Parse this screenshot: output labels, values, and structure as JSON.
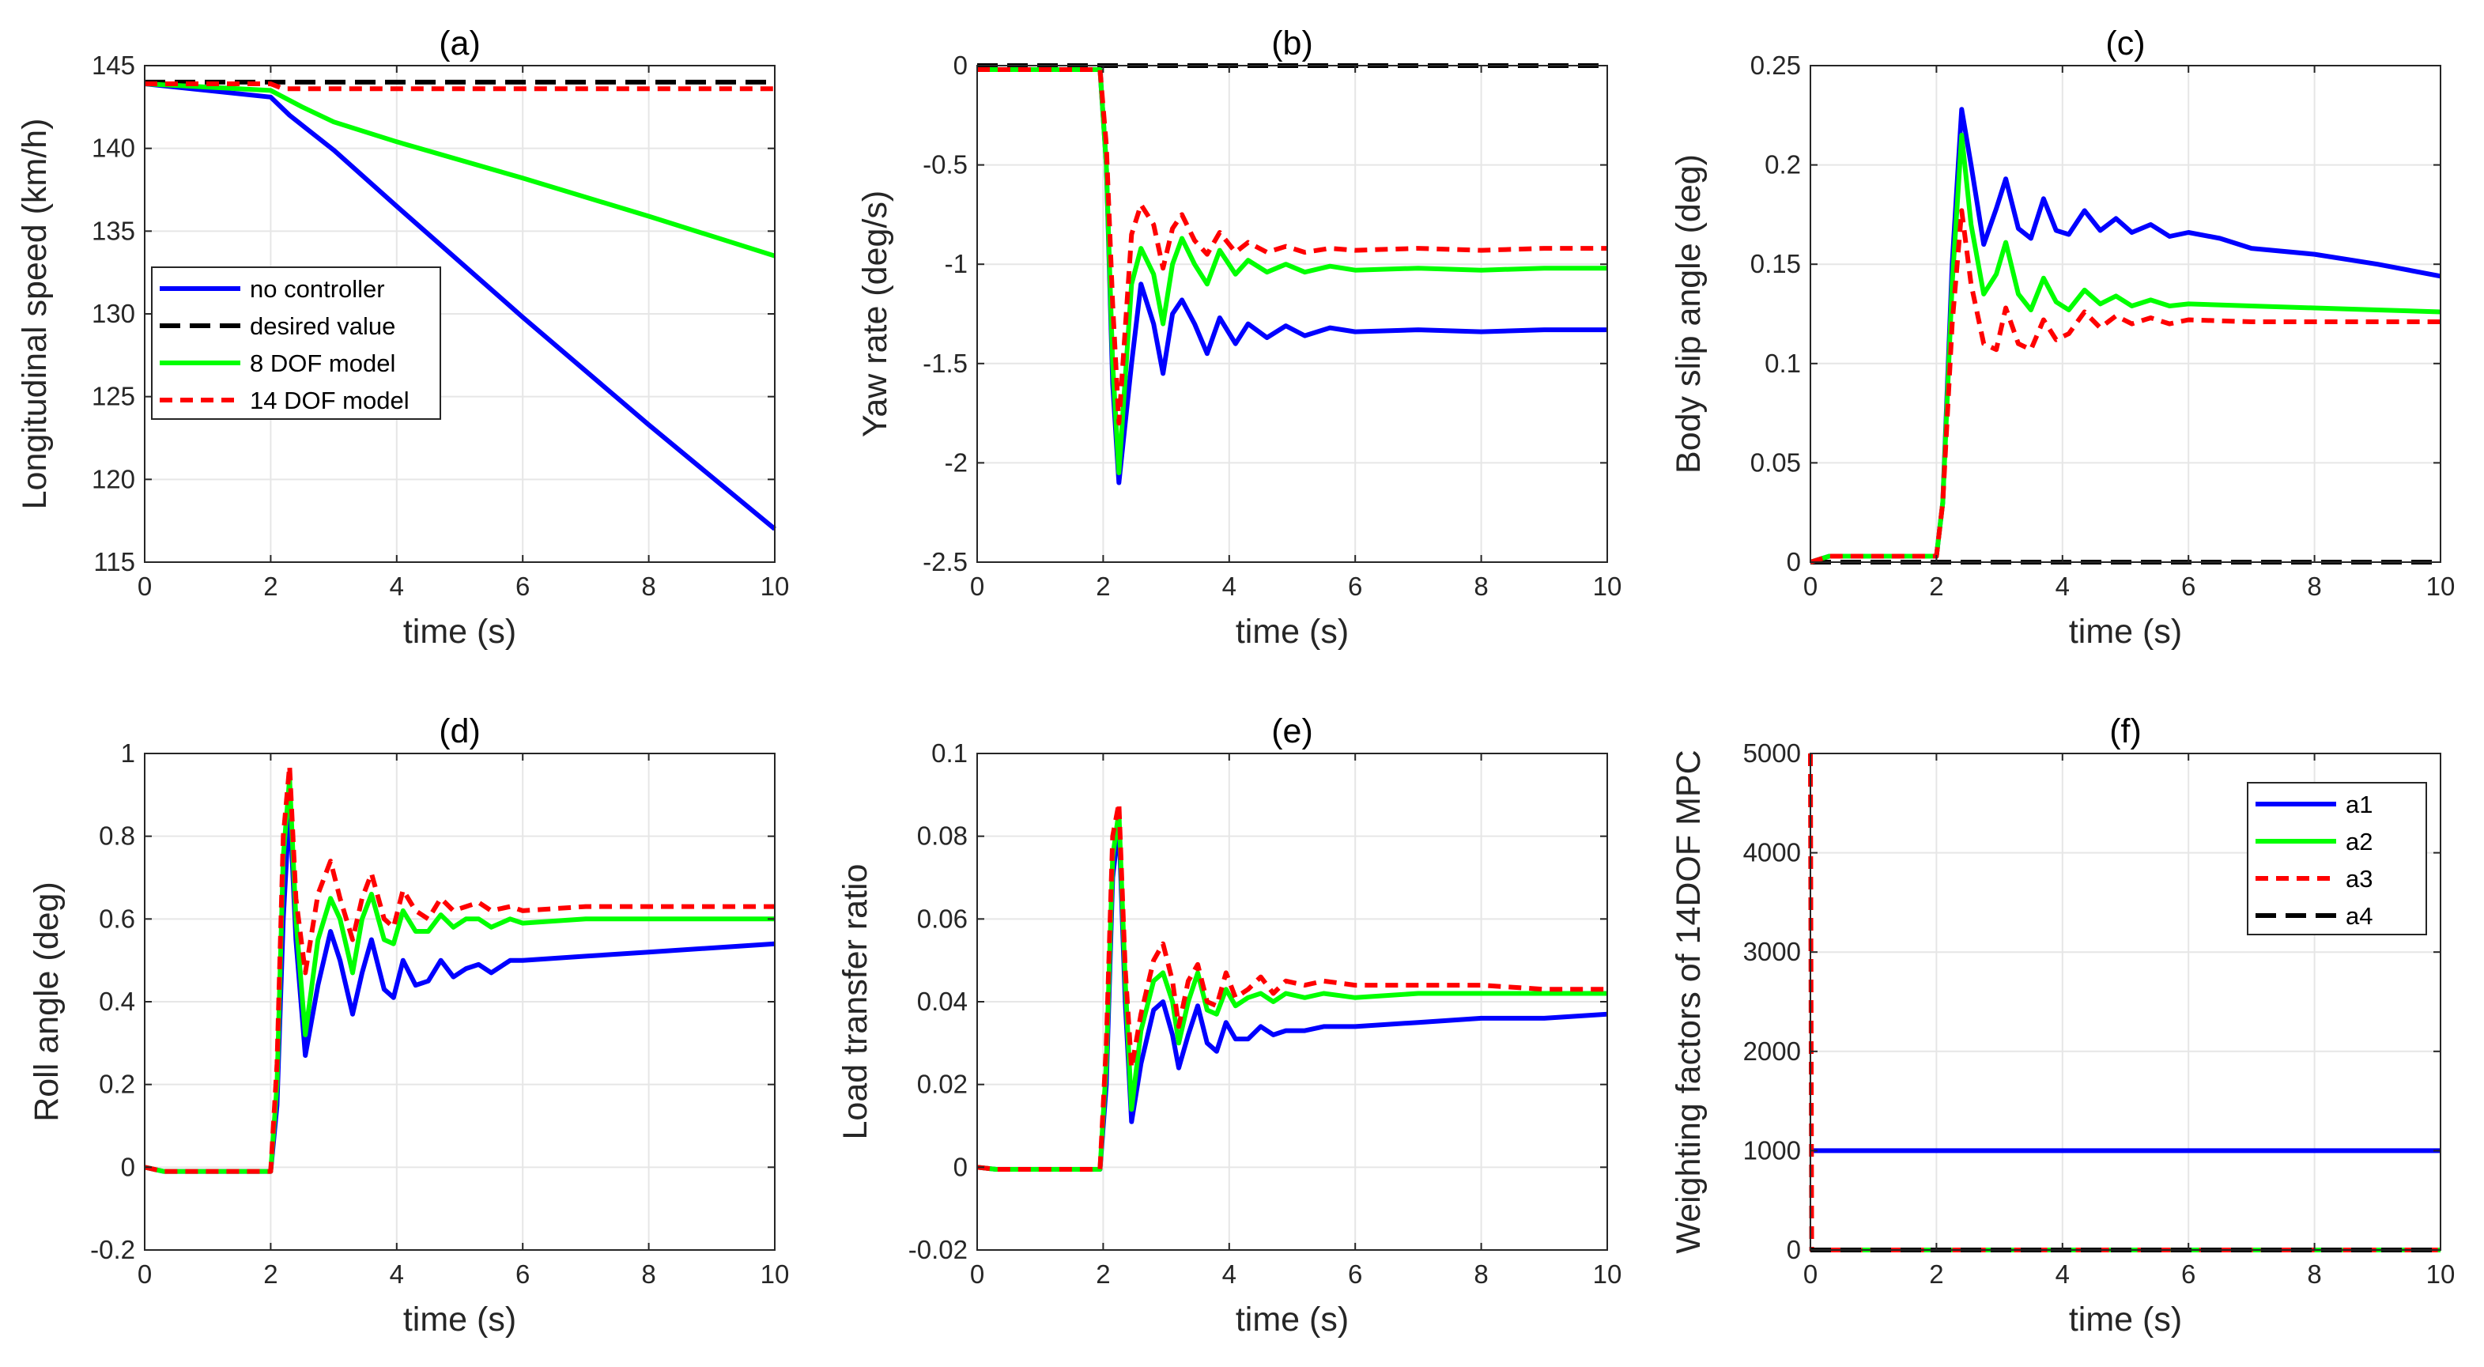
{
  "chart_data": [
    {
      "id": "a",
      "type": "line",
      "title": "(a)",
      "xlabel": "time (s)",
      "ylabel": "Longitudinal speed (km/h)",
      "xlim": [
        0,
        10
      ],
      "ylim": [
        115,
        145
      ],
      "xticks": [
        0,
        2,
        4,
        6,
        8,
        10
      ],
      "yticks": [
        115,
        120,
        125,
        130,
        135,
        140,
        145
      ],
      "grid": true,
      "legend_position": "middle-left",
      "series": [
        {
          "name": "no controller",
          "color": "#0000ff",
          "dash": "solid",
          "x": [
            0,
            2,
            2.3,
            3,
            4,
            6,
            8,
            10
          ],
          "y": [
            143.9,
            143.1,
            142,
            139.9,
            136.5,
            129.8,
            123.3,
            117
          ]
        },
        {
          "name": "desired value",
          "color": "#000000",
          "dash": "dash",
          "x": [
            0,
            10
          ],
          "y": [
            144,
            144
          ]
        },
        {
          "name": "8 DOF model",
          "color": "#00ff00",
          "dash": "solid",
          "x": [
            0,
            2,
            2.5,
            3,
            4,
            6,
            8,
            10
          ],
          "y": [
            143.9,
            143.5,
            142.5,
            141.6,
            140.4,
            138.2,
            135.9,
            133.5
          ]
        },
        {
          "name": "14 DOF model",
          "color": "#ff0000",
          "dash": "dash",
          "x": [
            0,
            2,
            2.2,
            4,
            6,
            8,
            10
          ],
          "y": [
            143.9,
            143.9,
            143.6,
            143.6,
            143.6,
            143.6,
            143.6
          ]
        }
      ]
    },
    {
      "id": "b",
      "type": "line",
      "title": "(b)",
      "xlabel": "time (s)",
      "ylabel": "Yaw rate (deg/s)",
      "xlim": [
        0,
        10
      ],
      "ylim": [
        -2.5,
        0
      ],
      "xticks": [
        0,
        2,
        4,
        6,
        8,
        10
      ],
      "yticks": [
        -2.5,
        -2,
        -1.5,
        -1,
        -0.5,
        0
      ],
      "grid": true,
      "series": [
        {
          "name": "no controller",
          "color": "#0000ff",
          "dash": "solid",
          "x": [
            0,
            1.95,
            2.05,
            2.15,
            2.25,
            2.45,
            2.6,
            2.8,
            2.95,
            3.1,
            3.25,
            3.45,
            3.65,
            3.85,
            4.1,
            4.3,
            4.6,
            4.9,
            5.2,
            5.6,
            6,
            7,
            8,
            9,
            10
          ],
          "y": [
            -0.02,
            -0.02,
            -0.5,
            -1.6,
            -2.1,
            -1.5,
            -1.1,
            -1.3,
            -1.55,
            -1.25,
            -1.18,
            -1.3,
            -1.45,
            -1.27,
            -1.4,
            -1.3,
            -1.37,
            -1.31,
            -1.36,
            -1.32,
            -1.34,
            -1.33,
            -1.34,
            -1.33,
            -1.33
          ]
        },
        {
          "name": "desired value",
          "color": "#000000",
          "dash": "dash",
          "x": [
            0,
            10
          ],
          "y": [
            0,
            0
          ]
        },
        {
          "name": "8 DOF model",
          "color": "#00ff00",
          "dash": "solid",
          "x": [
            0,
            1.95,
            2.05,
            2.15,
            2.25,
            2.45,
            2.6,
            2.8,
            2.95,
            3.1,
            3.25,
            3.45,
            3.65,
            3.85,
            4.1,
            4.3,
            4.6,
            4.9,
            5.2,
            5.6,
            6,
            7,
            8,
            9,
            10
          ],
          "y": [
            -0.02,
            -0.02,
            -0.5,
            -1.5,
            -2.05,
            -1.1,
            -0.92,
            -1.05,
            -1.3,
            -1.0,
            -0.87,
            -1.0,
            -1.1,
            -0.93,
            -1.05,
            -0.98,
            -1.04,
            -1.0,
            -1.04,
            -1.01,
            -1.03,
            -1.02,
            -1.03,
            -1.02,
            -1.02
          ]
        },
        {
          "name": "14 DOF model",
          "color": "#ff0000",
          "dash": "dash",
          "x": [
            0,
            1.95,
            2.05,
            2.15,
            2.25,
            2.45,
            2.6,
            2.8,
            2.95,
            3.1,
            3.25,
            3.45,
            3.65,
            3.85,
            4.1,
            4.3,
            4.6,
            4.9,
            5.2,
            5.6,
            6,
            7,
            8,
            9,
            10
          ],
          "y": [
            -0.02,
            -0.02,
            -0.4,
            -1.2,
            -1.8,
            -0.85,
            -0.7,
            -0.8,
            -1.02,
            -0.82,
            -0.75,
            -0.88,
            -0.95,
            -0.84,
            -0.94,
            -0.89,
            -0.94,
            -0.91,
            -0.94,
            -0.92,
            -0.93,
            -0.92,
            -0.93,
            -0.92,
            -0.92
          ]
        }
      ]
    },
    {
      "id": "c",
      "type": "line",
      "title": "(c)",
      "xlabel": "time (s)",
      "ylabel": "Body slip angle (deg)",
      "xlim": [
        0,
        10
      ],
      "ylim": [
        0,
        0.25
      ],
      "xticks": [
        0,
        2,
        4,
        6,
        8,
        10
      ],
      "yticks": [
        0,
        0.05,
        0.1,
        0.15,
        0.2,
        0.25
      ],
      "grid": true,
      "series": [
        {
          "name": "no controller",
          "color": "#0000ff",
          "dash": "solid",
          "x": [
            0,
            0.3,
            2,
            2.1,
            2.25,
            2.4,
            2.55,
            2.75,
            2.95,
            3.1,
            3.3,
            3.5,
            3.7,
            3.9,
            4.1,
            4.35,
            4.6,
            4.85,
            5.1,
            5.4,
            5.7,
            6,
            6.5,
            7,
            8,
            9,
            10
          ],
          "y": [
            0,
            0.003,
            0.003,
            0.03,
            0.15,
            0.228,
            0.2,
            0.16,
            0.178,
            0.193,
            0.168,
            0.163,
            0.183,
            0.167,
            0.165,
            0.177,
            0.167,
            0.173,
            0.166,
            0.17,
            0.164,
            0.166,
            0.163,
            0.158,
            0.155,
            0.15,
            0.144
          ]
        },
        {
          "name": "desired value",
          "color": "#000000",
          "dash": "dash",
          "x": [
            0,
            10
          ],
          "y": [
            0,
            0
          ]
        },
        {
          "name": "8 DOF model",
          "color": "#00ff00",
          "dash": "solid",
          "x": [
            0,
            0.3,
            2,
            2.1,
            2.25,
            2.4,
            2.55,
            2.75,
            2.95,
            3.1,
            3.3,
            3.5,
            3.7,
            3.9,
            4.1,
            4.35,
            4.6,
            4.85,
            5.1,
            5.4,
            5.7,
            6,
            7,
            8,
            9,
            10
          ],
          "y": [
            0,
            0.003,
            0.003,
            0.03,
            0.14,
            0.215,
            0.17,
            0.135,
            0.145,
            0.161,
            0.135,
            0.127,
            0.143,
            0.131,
            0.127,
            0.137,
            0.13,
            0.134,
            0.129,
            0.132,
            0.129,
            0.13,
            0.129,
            0.128,
            0.127,
            0.126
          ]
        },
        {
          "name": "14 DOF model",
          "color": "#ff0000",
          "dash": "dash",
          "x": [
            0,
            0.3,
            2,
            2.1,
            2.25,
            2.4,
            2.55,
            2.75,
            2.95,
            3.1,
            3.3,
            3.5,
            3.7,
            3.9,
            4.1,
            4.35,
            4.6,
            4.85,
            5.1,
            5.4,
            5.7,
            6,
            7,
            8,
            9,
            10
          ],
          "y": [
            0,
            0.003,
            0.003,
            0.03,
            0.12,
            0.177,
            0.14,
            0.11,
            0.107,
            0.128,
            0.11,
            0.107,
            0.122,
            0.112,
            0.115,
            0.126,
            0.118,
            0.124,
            0.12,
            0.123,
            0.12,
            0.122,
            0.121,
            0.121,
            0.121,
            0.121
          ]
        }
      ]
    },
    {
      "id": "d",
      "type": "line",
      "title": "(d)",
      "xlabel": "time (s)",
      "ylabel": "Roll angle (deg)",
      "xlim": [
        0,
        10
      ],
      "ylim": [
        -0.2,
        1
      ],
      "xticks": [
        0,
        2,
        4,
        6,
        8,
        10
      ],
      "yticks": [
        -0.2,
        0,
        0.2,
        0.4,
        0.6,
        0.8,
        1
      ],
      "grid": true,
      "series": [
        {
          "name": "no controller",
          "color": "#0000ff",
          "dash": "solid",
          "x": [
            0,
            0.3,
            2,
            2.1,
            2.2,
            2.3,
            2.4,
            2.55,
            2.75,
            2.95,
            3.1,
            3.3,
            3.45,
            3.6,
            3.8,
            3.95,
            4.1,
            4.3,
            4.5,
            4.7,
            4.9,
            5.1,
            5.3,
            5.5,
            5.8,
            6,
            7,
            8,
            9,
            10
          ],
          "y": [
            0,
            -0.01,
            -0.01,
            0.15,
            0.6,
            0.88,
            0.55,
            0.27,
            0.44,
            0.57,
            0.5,
            0.37,
            0.47,
            0.55,
            0.43,
            0.41,
            0.5,
            0.44,
            0.45,
            0.5,
            0.46,
            0.48,
            0.49,
            0.47,
            0.5,
            0.5,
            0.51,
            0.52,
            0.53,
            0.54
          ]
        },
        {
          "name": "8 DOF model",
          "color": "#00ff00",
          "dash": "solid",
          "x": [
            0,
            0.3,
            2,
            2.1,
            2.2,
            2.3,
            2.4,
            2.55,
            2.75,
            2.95,
            3.1,
            3.3,
            3.45,
            3.6,
            3.8,
            3.95,
            4.1,
            4.3,
            4.5,
            4.7,
            4.9,
            5.1,
            5.3,
            5.5,
            5.8,
            6,
            7,
            8,
            9,
            10
          ],
          "y": [
            0,
            -0.01,
            -0.01,
            0.2,
            0.75,
            0.94,
            0.6,
            0.32,
            0.55,
            0.65,
            0.6,
            0.47,
            0.6,
            0.66,
            0.55,
            0.54,
            0.62,
            0.57,
            0.57,
            0.61,
            0.58,
            0.6,
            0.6,
            0.58,
            0.6,
            0.59,
            0.6,
            0.6,
            0.6,
            0.6
          ]
        },
        {
          "name": "14 DOF model",
          "color": "#ff0000",
          "dash": "dash",
          "x": [
            0,
            0.3,
            2,
            2.1,
            2.2,
            2.3,
            2.4,
            2.55,
            2.75,
            2.95,
            3.1,
            3.3,
            3.45,
            3.6,
            3.8,
            3.95,
            4.1,
            4.3,
            4.5,
            4.7,
            4.9,
            5.1,
            5.3,
            5.5,
            5.8,
            6,
            7,
            8,
            9,
            10
          ],
          "y": [
            0,
            -0.01,
            -0.01,
            0.25,
            0.8,
            0.97,
            0.65,
            0.47,
            0.66,
            0.74,
            0.65,
            0.55,
            0.65,
            0.71,
            0.6,
            0.58,
            0.67,
            0.62,
            0.6,
            0.65,
            0.62,
            0.63,
            0.64,
            0.62,
            0.63,
            0.62,
            0.63,
            0.63,
            0.63,
            0.63
          ]
        }
      ]
    },
    {
      "id": "e",
      "type": "line",
      "title": "(e)",
      "xlabel": "time (s)",
      "ylabel": "Load transfer ratio",
      "xlim": [
        0,
        10
      ],
      "ylim": [
        -0.02,
        0.1
      ],
      "xticks": [
        0,
        2,
        4,
        6,
        8,
        10
      ],
      "yticks": [
        -0.02,
        0,
        0.02,
        0.04,
        0.06,
        0.08,
        0.1
      ],
      "grid": true,
      "series": [
        {
          "name": "no controller",
          "color": "#0000ff",
          "dash": "solid",
          "x": [
            0,
            0.3,
            1.95,
            2.05,
            2.15,
            2.25,
            2.35,
            2.45,
            2.6,
            2.8,
            2.95,
            3.1,
            3.2,
            3.35,
            3.5,
            3.65,
            3.8,
            3.95,
            4.1,
            4.3,
            4.5,
            4.7,
            4.9,
            5.2,
            5.5,
            6,
            7,
            8,
            9,
            10
          ],
          "y": [
            0,
            -0.0005,
            -0.0005,
            0.02,
            0.07,
            0.083,
            0.04,
            0.011,
            0.025,
            0.038,
            0.04,
            0.032,
            0.024,
            0.032,
            0.039,
            0.03,
            0.028,
            0.035,
            0.031,
            0.031,
            0.034,
            0.032,
            0.033,
            0.033,
            0.034,
            0.034,
            0.035,
            0.036,
            0.036,
            0.037
          ]
        },
        {
          "name": "8 DOF model",
          "color": "#00ff00",
          "dash": "solid",
          "x": [
            0,
            0.3,
            1.95,
            2.05,
            2.15,
            2.25,
            2.35,
            2.45,
            2.6,
            2.8,
            2.95,
            3.1,
            3.2,
            3.35,
            3.5,
            3.65,
            3.8,
            3.95,
            4.1,
            4.3,
            4.5,
            4.7,
            4.9,
            5.2,
            5.5,
            6,
            7,
            8,
            9,
            10
          ],
          "y": [
            0,
            -0.0005,
            -0.0005,
            0.025,
            0.075,
            0.086,
            0.045,
            0.014,
            0.033,
            0.045,
            0.047,
            0.04,
            0.03,
            0.04,
            0.047,
            0.038,
            0.037,
            0.043,
            0.039,
            0.041,
            0.042,
            0.04,
            0.042,
            0.041,
            0.042,
            0.041,
            0.042,
            0.042,
            0.042,
            0.042
          ]
        },
        {
          "name": "14 DOF model",
          "color": "#ff0000",
          "dash": "dash",
          "x": [
            0,
            0.3,
            1.95,
            2.05,
            2.15,
            2.25,
            2.35,
            2.45,
            2.6,
            2.8,
            2.95,
            3.1,
            3.2,
            3.35,
            3.5,
            3.65,
            3.8,
            3.95,
            4.1,
            4.3,
            4.5,
            4.7,
            4.9,
            5.2,
            5.5,
            6,
            7,
            8,
            9,
            10
          ],
          "y": [
            0,
            -0.0005,
            -0.0005,
            0.03,
            0.08,
            0.088,
            0.048,
            0.024,
            0.037,
            0.05,
            0.054,
            0.045,
            0.034,
            0.045,
            0.049,
            0.04,
            0.039,
            0.047,
            0.041,
            0.043,
            0.046,
            0.042,
            0.045,
            0.044,
            0.045,
            0.044,
            0.044,
            0.044,
            0.043,
            0.043
          ]
        }
      ]
    },
    {
      "id": "f",
      "type": "line",
      "title": "(f)",
      "xlabel": "time (s)",
      "ylabel": "Weighting factors of 14DOF MPC",
      "xlim": [
        0,
        10
      ],
      "ylim": [
        0,
        5000
      ],
      "xticks": [
        0,
        2,
        4,
        6,
        8,
        10
      ],
      "yticks": [
        0,
        1000,
        2000,
        3000,
        4000,
        5000
      ],
      "grid": true,
      "legend_position": "top-right",
      "series": [
        {
          "name": "a1",
          "color": "#0000ff",
          "dash": "solid",
          "x": [
            0,
            10
          ],
          "y": [
            1000,
            1000
          ]
        },
        {
          "name": "a2",
          "color": "#00ff00",
          "dash": "solid",
          "x": [
            0,
            10
          ],
          "y": [
            0,
            0
          ]
        },
        {
          "name": "a3",
          "color": "#ff0000",
          "dash": "dash",
          "x": [
            0,
            0,
            0.02,
            10
          ],
          "y": [
            5000,
            5000,
            0,
            0
          ]
        },
        {
          "name": "a4",
          "color": "#000000",
          "dash": "dash",
          "x": [
            0,
            10
          ],
          "y": [
            0,
            0
          ]
        }
      ]
    }
  ]
}
